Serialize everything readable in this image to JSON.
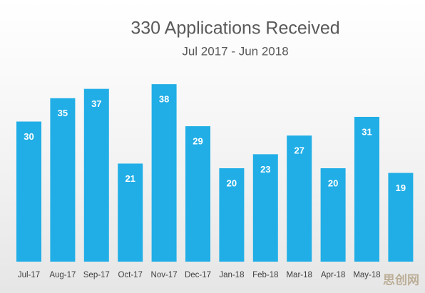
{
  "chart_data": {
    "type": "bar",
    "title": "330 Applications Received",
    "subtitle": "Jul 2017 - Jun 2018",
    "categories": [
      "Jul-17",
      "Aug-17",
      "Sep-17",
      "Oct-17",
      "Nov-17",
      "Dec-17",
      "Jan-18",
      "Feb-18",
      "Mar-18",
      "Apr-18",
      "May-18",
      null
    ],
    "values": [
      30,
      35,
      37,
      21,
      38,
      29,
      20,
      23,
      27,
      20,
      31,
      19
    ],
    "color": "#21aee6"
  },
  "watermark": "思创网"
}
